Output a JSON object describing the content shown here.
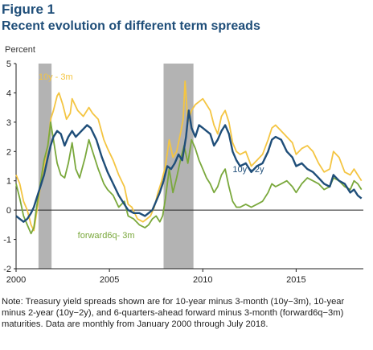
{
  "figure": {
    "label": "Figure 1",
    "title": "Recent evolution of different term spreads",
    "note": "Note: Treasury yield spreads shown are for 10-year minus 3-month (10y−3m), 10-year minus 2-year (10y−2y), and 6-quarters-ahead forward minus 3-month (forward6q−3m) maturities. Data are monthly from January 2000 through July 2018."
  },
  "chart_data": {
    "type": "line",
    "ylabel": "Percent",
    "xlabel": "",
    "xlim": [
      2000,
      2018.6
    ],
    "ylim": [
      -2,
      5
    ],
    "yticks": [
      -2,
      -1,
      0,
      1,
      2,
      3,
      4,
      5
    ],
    "xticks": [
      2000,
      2005,
      2010,
      2015
    ],
    "grid": false,
    "recessions": [
      [
        2001.2,
        2001.9
      ],
      [
        2007.9,
        2009.5
      ]
    ],
    "colors": {
      "10y-3m": "#f4c542",
      "10y-2y": "#1f4e79",
      "forward6q-3m": "#7aa83c",
      "recession": "#b3b3b3"
    },
    "series": [
      {
        "name": "10y - 3m",
        "points": [
          [
            2000.0,
            1.2
          ],
          [
            2000.2,
            0.9
          ],
          [
            2000.4,
            0.3
          ],
          [
            2000.6,
            0.0
          ],
          [
            2000.8,
            -0.5
          ],
          [
            2000.95,
            -0.7
          ],
          [
            2001.1,
            -0.1
          ],
          [
            2001.3,
            0.8
          ],
          [
            2001.5,
            1.5
          ],
          [
            2001.7,
            2.2
          ],
          [
            2001.85,
            3.1
          ],
          [
            2002.0,
            3.4
          ],
          [
            2002.2,
            3.9
          ],
          [
            2002.3,
            4.0
          ],
          [
            2002.5,
            3.6
          ],
          [
            2002.7,
            3.1
          ],
          [
            2002.9,
            3.3
          ],
          [
            2003.0,
            3.8
          ],
          [
            2003.3,
            3.4
          ],
          [
            2003.6,
            3.2
          ],
          [
            2003.9,
            3.5
          ],
          [
            2004.1,
            3.3
          ],
          [
            2004.4,
            3.1
          ],
          [
            2004.7,
            2.4
          ],
          [
            2004.9,
            2.1
          ],
          [
            2005.2,
            1.7
          ],
          [
            2005.5,
            1.2
          ],
          [
            2005.8,
            0.8
          ],
          [
            2006.0,
            0.2
          ],
          [
            2006.2,
            0.1
          ],
          [
            2006.5,
            -0.3
          ],
          [
            2006.8,
            -0.4
          ],
          [
            2007.0,
            -0.3
          ],
          [
            2007.2,
            -0.2
          ],
          [
            2007.4,
            0.1
          ],
          [
            2007.6,
            0.6
          ],
          [
            2007.8,
            1.0
          ],
          [
            2008.0,
            1.5
          ],
          [
            2008.2,
            2.4
          ],
          [
            2008.4,
            1.8
          ],
          [
            2008.6,
            2.0
          ],
          [
            2008.8,
            2.6
          ],
          [
            2008.95,
            3.1
          ],
          [
            2009.05,
            4.4
          ],
          [
            2009.2,
            3.0
          ],
          [
            2009.4,
            3.4
          ],
          [
            2009.6,
            3.6
          ],
          [
            2009.8,
            3.7
          ],
          [
            2010.0,
            3.8
          ],
          [
            2010.2,
            3.6
          ],
          [
            2010.4,
            3.4
          ],
          [
            2010.6,
            2.9
          ],
          [
            2010.8,
            2.6
          ],
          [
            2011.0,
            3.2
          ],
          [
            2011.2,
            3.4
          ],
          [
            2011.4,
            3.0
          ],
          [
            2011.6,
            2.3
          ],
          [
            2011.8,
            2.0
          ],
          [
            2012.0,
            1.9
          ],
          [
            2012.3,
            2.0
          ],
          [
            2012.6,
            1.5
          ],
          [
            2012.9,
            1.7
          ],
          [
            2013.2,
            1.9
          ],
          [
            2013.5,
            2.4
          ],
          [
            2013.7,
            2.8
          ],
          [
            2013.9,
            2.9
          ],
          [
            2014.2,
            2.7
          ],
          [
            2014.5,
            2.5
          ],
          [
            2014.8,
            2.3
          ],
          [
            2015.0,
            1.9
          ],
          [
            2015.3,
            2.1
          ],
          [
            2015.6,
            2.2
          ],
          [
            2015.9,
            2.0
          ],
          [
            2016.2,
            1.6
          ],
          [
            2016.5,
            1.3
          ],
          [
            2016.8,
            1.4
          ],
          [
            2017.0,
            2.0
          ],
          [
            2017.3,
            1.8
          ],
          [
            2017.6,
            1.3
          ],
          [
            2017.9,
            1.2
          ],
          [
            2018.1,
            1.4
          ],
          [
            2018.3,
            1.2
          ],
          [
            2018.5,
            1.0
          ]
        ]
      },
      {
        "name": "10y - 2y",
        "points": [
          [
            2000.0,
            -0.2
          ],
          [
            2000.2,
            -0.3
          ],
          [
            2000.4,
            -0.4
          ],
          [
            2000.6,
            -0.3
          ],
          [
            2000.8,
            -0.1
          ],
          [
            2000.95,
            0.1
          ],
          [
            2001.1,
            0.4
          ],
          [
            2001.3,
            0.8
          ],
          [
            2001.5,
            1.2
          ],
          [
            2001.7,
            1.8
          ],
          [
            2001.85,
            2.2
          ],
          [
            2002.0,
            2.5
          ],
          [
            2002.2,
            2.7
          ],
          [
            2002.4,
            2.6
          ],
          [
            2002.6,
            2.2
          ],
          [
            2002.8,
            2.5
          ],
          [
            2003.0,
            2.7
          ],
          [
            2003.2,
            2.5
          ],
          [
            2003.5,
            2.7
          ],
          [
            2003.8,
            2.9
          ],
          [
            2004.0,
            2.8
          ],
          [
            2004.3,
            2.4
          ],
          [
            2004.6,
            1.8
          ],
          [
            2004.9,
            1.3
          ],
          [
            2005.2,
            0.9
          ],
          [
            2005.5,
            0.5
          ],
          [
            2005.8,
            0.2
          ],
          [
            2006.0,
            0.0
          ],
          [
            2006.3,
            -0.1
          ],
          [
            2006.6,
            -0.1
          ],
          [
            2006.9,
            -0.2
          ],
          [
            2007.1,
            -0.1
          ],
          [
            2007.3,
            0.0
          ],
          [
            2007.5,
            0.3
          ],
          [
            2007.7,
            0.6
          ],
          [
            2007.9,
            1.0
          ],
          [
            2008.1,
            1.5
          ],
          [
            2008.3,
            1.4
          ],
          [
            2008.5,
            1.6
          ],
          [
            2008.7,
            1.9
          ],
          [
            2008.9,
            1.7
          ],
          [
            2009.1,
            2.5
          ],
          [
            2009.25,
            3.4
          ],
          [
            2009.4,
            2.8
          ],
          [
            2009.6,
            2.5
          ],
          [
            2009.8,
            2.9
          ],
          [
            2010.0,
            2.8
          ],
          [
            2010.2,
            2.7
          ],
          [
            2010.4,
            2.6
          ],
          [
            2010.6,
            2.2
          ],
          [
            2010.8,
            2.4
          ],
          [
            2011.0,
            2.7
          ],
          [
            2011.2,
            2.9
          ],
          [
            2011.4,
            2.6
          ],
          [
            2011.6,
            2.0
          ],
          [
            2011.8,
            1.7
          ],
          [
            2012.0,
            1.5
          ],
          [
            2012.3,
            1.6
          ],
          [
            2012.6,
            1.3
          ],
          [
            2012.9,
            1.5
          ],
          [
            2013.2,
            1.6
          ],
          [
            2013.5,
            2.0
          ],
          [
            2013.7,
            2.4
          ],
          [
            2013.9,
            2.5
          ],
          [
            2014.2,
            2.4
          ],
          [
            2014.5,
            2.0
          ],
          [
            2014.8,
            1.8
          ],
          [
            2015.0,
            1.5
          ],
          [
            2015.3,
            1.6
          ],
          [
            2015.6,
            1.4
          ],
          [
            2015.9,
            1.3
          ],
          [
            2016.2,
            1.1
          ],
          [
            2016.5,
            0.9
          ],
          [
            2016.8,
            0.8
          ],
          [
            2017.0,
            1.2
          ],
          [
            2017.3,
            1.0
          ],
          [
            2017.6,
            0.9
          ],
          [
            2017.9,
            0.6
          ],
          [
            2018.1,
            0.7
          ],
          [
            2018.3,
            0.5
          ],
          [
            2018.5,
            0.4
          ]
        ]
      },
      {
        "name": "forward6q- 3m",
        "points": [
          [
            2000.0,
            0.9
          ],
          [
            2000.2,
            0.4
          ],
          [
            2000.4,
            -0.2
          ],
          [
            2000.6,
            -0.5
          ],
          [
            2000.8,
            -0.8
          ],
          [
            2000.95,
            -0.6
          ],
          [
            2001.1,
            0.1
          ],
          [
            2001.3,
            0.9
          ],
          [
            2001.5,
            1.7
          ],
          [
            2001.7,
            2.2
          ],
          [
            2001.85,
            3.0
          ],
          [
            2002.0,
            2.4
          ],
          [
            2002.2,
            1.6
          ],
          [
            2002.4,
            1.2
          ],
          [
            2002.6,
            1.1
          ],
          [
            2002.8,
            1.6
          ],
          [
            2003.0,
            2.3
          ],
          [
            2003.2,
            1.4
          ],
          [
            2003.4,
            1.1
          ],
          [
            2003.7,
            1.8
          ],
          [
            2003.9,
            2.4
          ],
          [
            2004.1,
            2.0
          ],
          [
            2004.4,
            1.4
          ],
          [
            2004.7,
            0.9
          ],
          [
            2004.9,
            0.7
          ],
          [
            2005.2,
            0.5
          ],
          [
            2005.5,
            0.1
          ],
          [
            2005.8,
            0.3
          ],
          [
            2006.0,
            -0.2
          ],
          [
            2006.3,
            -0.3
          ],
          [
            2006.6,
            -0.5
          ],
          [
            2006.9,
            -0.6
          ],
          [
            2007.1,
            -0.5
          ],
          [
            2007.3,
            -0.3
          ],
          [
            2007.5,
            -0.2
          ],
          [
            2007.7,
            -0.4
          ],
          [
            2007.85,
            -0.2
          ],
          [
            2008.0,
            0.4
          ],
          [
            2008.2,
            1.4
          ],
          [
            2008.4,
            0.6
          ],
          [
            2008.6,
            1.1
          ],
          [
            2008.8,
            1.7
          ],
          [
            2009.0,
            2.2
          ],
          [
            2009.2,
            1.6
          ],
          [
            2009.4,
            2.4
          ],
          [
            2009.6,
            2.1
          ],
          [
            2009.8,
            1.7
          ],
          [
            2010.0,
            1.4
          ],
          [
            2010.2,
            1.1
          ],
          [
            2010.4,
            0.9
          ],
          [
            2010.6,
            0.6
          ],
          [
            2010.8,
            0.8
          ],
          [
            2011.0,
            1.2
          ],
          [
            2011.2,
            1.4
          ],
          [
            2011.4,
            0.8
          ],
          [
            2011.6,
            0.3
          ],
          [
            2011.8,
            0.1
          ],
          [
            2012.0,
            0.1
          ],
          [
            2012.3,
            0.2
          ],
          [
            2012.6,
            0.1
          ],
          [
            2012.9,
            0.2
          ],
          [
            2013.2,
            0.3
          ],
          [
            2013.5,
            0.6
          ],
          [
            2013.7,
            0.9
          ],
          [
            2013.9,
            0.8
          ],
          [
            2014.2,
            0.9
          ],
          [
            2014.5,
            1.0
          ],
          [
            2014.8,
            0.8
          ],
          [
            2015.0,
            0.6
          ],
          [
            2015.3,
            0.9
          ],
          [
            2015.6,
            1.1
          ],
          [
            2015.9,
            1.0
          ],
          [
            2016.2,
            0.9
          ],
          [
            2016.5,
            0.7
          ],
          [
            2016.8,
            0.8
          ],
          [
            2017.0,
            1.1
          ],
          [
            2017.3,
            1.0
          ],
          [
            2017.6,
            0.8
          ],
          [
            2017.9,
            0.7
          ],
          [
            2018.1,
            1.0
          ],
          [
            2018.3,
            0.9
          ],
          [
            2018.5,
            0.7
          ]
        ]
      }
    ],
    "annotations": [
      {
        "series": "10y - 3m",
        "text": "10y - 3m",
        "x": 2001.2,
        "y": 4.45
      },
      {
        "series": "10y - 2y",
        "text": "10y - 2y",
        "x": 2011.6,
        "y": 1.3
      },
      {
        "series": "forward6q- 3m",
        "text": "forward6q- 3m",
        "x": 2003.3,
        "y": -0.95
      }
    ]
  }
}
